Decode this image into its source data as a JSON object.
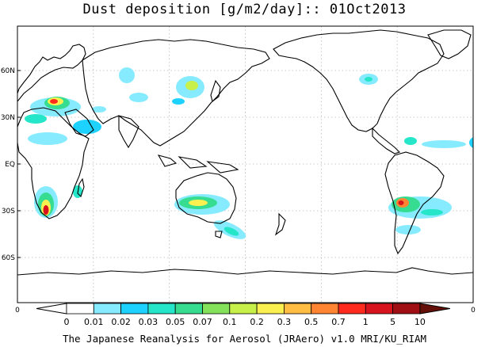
{
  "title": "Dust deposition [g/m2/day]:: 01Oct2013",
  "footer": "The Japanese Reanalysis for Aerosol (JRAero) v1.0 MRI/KU_RIAM",
  "map": {
    "lat_labels": [
      "60N",
      "30N",
      "EQ",
      "30S",
      "60S"
    ],
    "lat_values": [
      60,
      30,
      0,
      -30,
      -60
    ],
    "axis_end_left": "0",
    "axis_end_right": "0",
    "land_color": "#000000",
    "grid_color": "#b9b9b9"
  },
  "colorbar": {
    "levels": [
      "0",
      "0.01",
      "0.02",
      "0.03",
      "0.05",
      "0.07",
      "0.1",
      "0.2",
      "0.3",
      "0.5",
      "0.7",
      "1",
      "5",
      "10"
    ],
    "colors": [
      "#ffffff",
      "#ffffff",
      "#87ebff",
      "#1ed2ff",
      "#25e6c8",
      "#36dd91",
      "#84e25a",
      "#c8f04b",
      "#faf050",
      "#ffbe43",
      "#ff8532",
      "#ff2a1e",
      "#d7141e",
      "#a00f14",
      "#641008"
    ]
  },
  "dust_regions": [
    {
      "region": "Sahara / Middle East",
      "levels": [
        "0.01",
        "0.02",
        "0.03",
        "0.1",
        "0.3",
        "1"
      ]
    },
    {
      "region": "Southern Africa",
      "levels": [
        "0.01",
        "0.05",
        "0.3",
        "1",
        "5"
      ]
    },
    {
      "region": "Australia",
      "levels": [
        "0.01",
        "0.05",
        "0.2",
        "0.5"
      ]
    },
    {
      "region": "South America",
      "levels": [
        "0.01",
        "0.05",
        "0.3",
        "1",
        "5"
      ]
    },
    {
      "region": "North America",
      "levels": [
        "0.01",
        "0.05"
      ]
    },
    {
      "region": "Central Asia",
      "levels": [
        "0.01",
        "0.05",
        "0.2"
      ]
    }
  ]
}
